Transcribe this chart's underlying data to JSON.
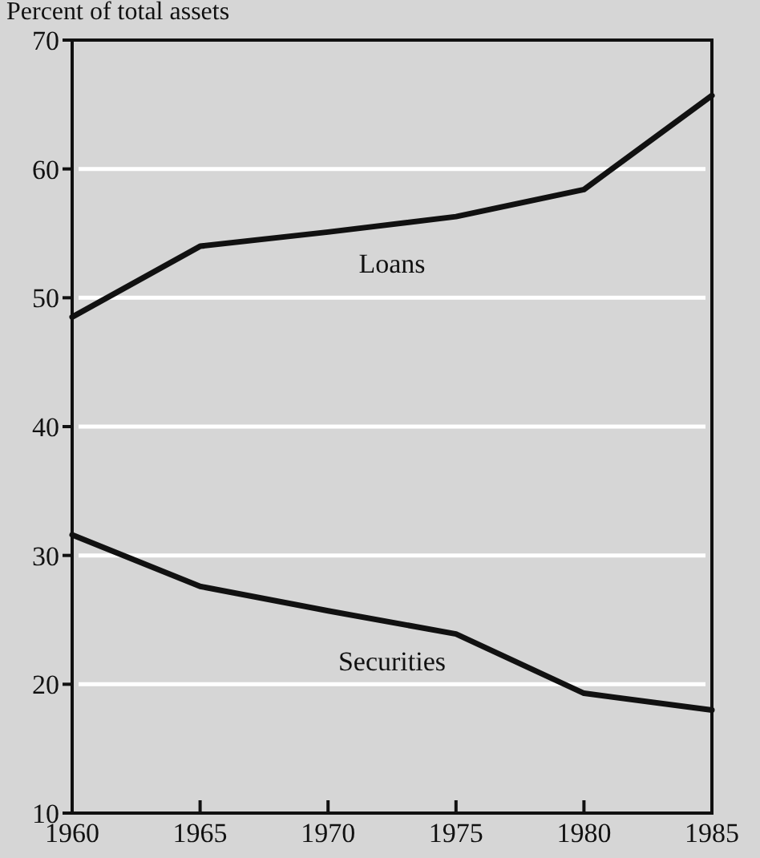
{
  "chart_data": {
    "type": "line",
    "ylabel": "Percent of total assets",
    "x": [
      1960,
      1965,
      1970,
      1975,
      1980,
      1985
    ],
    "series": [
      {
        "name": "Loans",
        "color": "#111111",
        "values": [
          48.5,
          54,
          55.1,
          56.3,
          58.4,
          65.7
        ]
      },
      {
        "name": "Securities",
        "color": "#111111",
        "values": [
          31.6,
          27.6,
          25.7,
          23.9,
          19.3,
          18
        ]
      }
    ],
    "xlim": [
      1960,
      1985
    ],
    "xticks": [
      1960,
      1965,
      1970,
      1975,
      1980,
      1985
    ],
    "ylim": [
      10,
      70
    ],
    "yticks": [
      10,
      20,
      30,
      40,
      50,
      60,
      70
    ],
    "grid": "y",
    "marker": "none",
    "line_style": "solid"
  }
}
